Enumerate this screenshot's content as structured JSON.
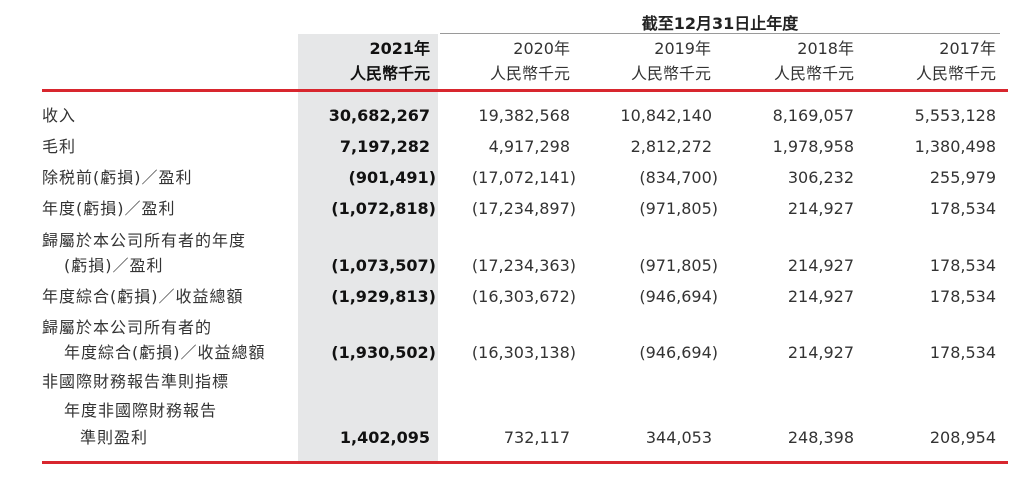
{
  "header": {
    "period_label": "截至12月31日止年度",
    "unit": "人民幣千元",
    "years": [
      "2021年",
      "2020年",
      "2019年",
      "2018年",
      "2017年"
    ]
  },
  "rows": [
    {
      "label": "收入",
      "values": [
        "30,682,267",
        "19,382,568",
        "10,842,140",
        "8,169,057",
        "5,553,128"
      ]
    },
    {
      "label": "毛利",
      "values": [
        "7,197,282",
        "4,917,298",
        "2,812,272",
        "1,978,958",
        "1,380,498"
      ]
    },
    {
      "label": "除税前(虧損)／盈利",
      "values": [
        "(901,491)",
        "(17,072,141)",
        "(834,700)",
        "306,232",
        "255,979"
      ]
    },
    {
      "label": "年度(虧損)／盈利",
      "values": [
        "(1,072,818)",
        "(17,234,897)",
        "(971,805)",
        "214,927",
        "178,534"
      ]
    },
    {
      "label": "歸屬於本公司所有者的年度",
      "label_cont": "(虧損)／盈利",
      "values": [
        "(1,073,507)",
        "(17,234,363)",
        "(971,805)",
        "214,927",
        "178,534"
      ]
    },
    {
      "label": "年度綜合(虧損)／收益總額",
      "values": [
        "(1,929,813)",
        "(16,303,672)",
        "(946,694)",
        "214,927",
        "178,534"
      ]
    },
    {
      "label": "歸屬於本公司所有者的",
      "label_cont": "年度綜合(虧損)／收益總額",
      "values": [
        "(1,930,502)",
        "(16,303,138)",
        "(946,694)",
        "214,927",
        "178,534"
      ]
    },
    {
      "label": "非國際財務報告準則指標",
      "sub_label": "年度非國際財務報告",
      "label_cont": "準則盈利",
      "values": [
        "1,402,095",
        "732,117",
        "344,053",
        "248,398",
        "208,954"
      ]
    }
  ]
}
